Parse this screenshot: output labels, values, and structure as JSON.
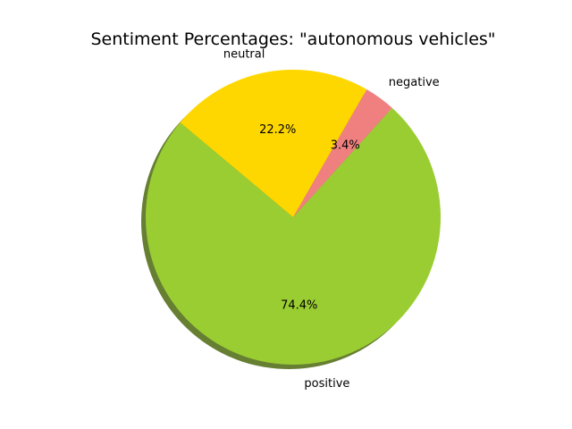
{
  "chart_data": {
    "type": "pie",
    "title": "Sentiment Percentages: \"autonomous vehicles\"",
    "start_angle_deg": 140,
    "direction": "counterclockwise",
    "shadow": true,
    "slices": [
      {
        "label": "positive",
        "value": 74.4,
        "pct_label": "74.4%",
        "color": "#9ACD32"
      },
      {
        "label": "negative",
        "value": 3.4,
        "pct_label": "3.4%",
        "color": "#F08080"
      },
      {
        "label": "neutral",
        "value": 22.2,
        "pct_label": "22.2%",
        "color": "#FFD700"
      }
    ]
  }
}
